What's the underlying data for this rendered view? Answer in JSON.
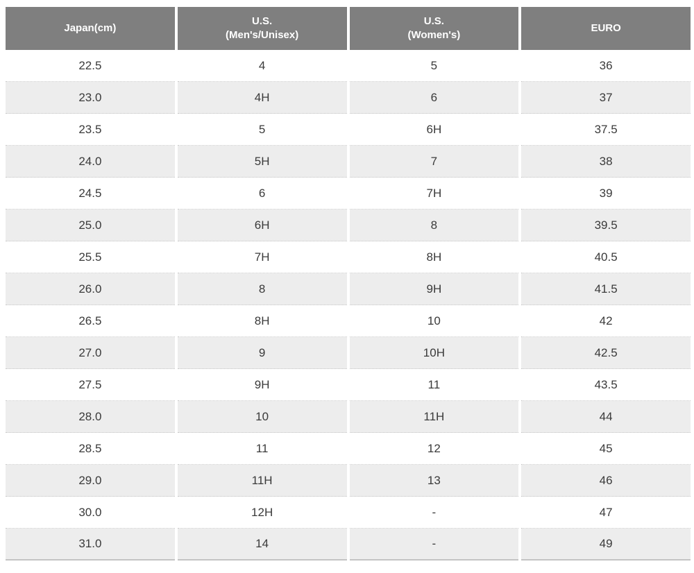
{
  "table": {
    "name": "shoe-size-conversion-chart",
    "columns": [
      {
        "key": "japan-cm",
        "lines": [
          "Japan(cm)"
        ]
      },
      {
        "key": "us-mens-unisex",
        "lines": [
          "U.S.",
          "(Men's/Unisex)"
        ]
      },
      {
        "key": "us-womens",
        "lines": [
          "U.S.",
          "(Women's)"
        ]
      },
      {
        "key": "euro",
        "lines": [
          "EURO"
        ]
      }
    ],
    "rows": [
      [
        "22.5",
        "4",
        "5",
        "36"
      ],
      [
        "23.0",
        "4H",
        "6",
        "37"
      ],
      [
        "23.5",
        "5",
        "6H",
        "37.5"
      ],
      [
        "24.0",
        "5H",
        "7",
        "38"
      ],
      [
        "24.5",
        "6",
        "7H",
        "39"
      ],
      [
        "25.0",
        "6H",
        "8",
        "39.5"
      ],
      [
        "25.5",
        "7H",
        "8H",
        "40.5"
      ],
      [
        "26.0",
        "8",
        "9H",
        "41.5"
      ],
      [
        "26.5",
        "8H",
        "10",
        "42"
      ],
      [
        "27.0",
        "9",
        "10H",
        "42.5"
      ],
      [
        "27.5",
        "9H",
        "11",
        "43.5"
      ],
      [
        "28.0",
        "10",
        "11H",
        "44"
      ],
      [
        "28.5",
        "11",
        "12",
        "45"
      ],
      [
        "29.0",
        "11H",
        "13",
        "46"
      ],
      [
        "30.0",
        "12H",
        "-",
        "47"
      ],
      [
        "31.0",
        "14",
        "-",
        "49"
      ]
    ]
  },
  "colors": {
    "header_bg": "#7f7f7f",
    "header_text": "#ffffff",
    "row_alt_bg": "#ededed",
    "body_text": "#3a3a3a",
    "divider": "#c8c8c8",
    "bottom_border": "#c4c4c4"
  }
}
